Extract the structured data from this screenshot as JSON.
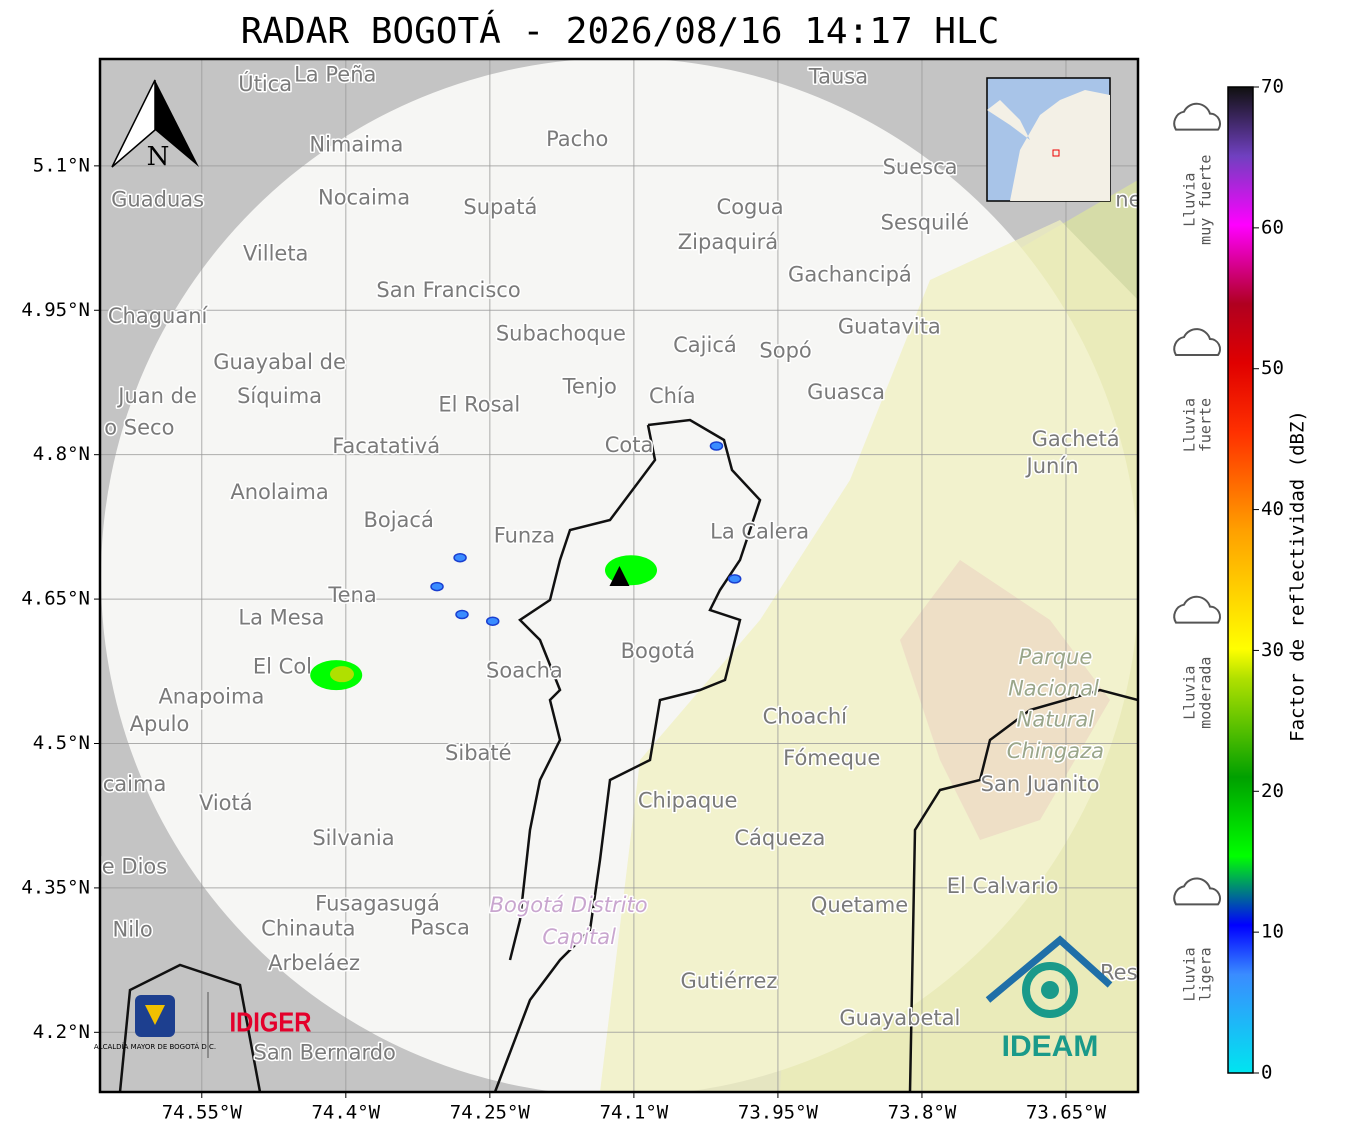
{
  "map": {
    "title": "RADAR BOGOTÁ - 2026/08/16 14:17 HLC",
    "lonlim": [
      -74.656,
      -73.575
    ],
    "latlim": [
      4.138,
      5.211
    ],
    "lon_ticks": [
      {
        "value": -74.55,
        "label": "74.55°W"
      },
      {
        "value": -74.4,
        "label": "74.4°W"
      },
      {
        "value": -74.25,
        "label": "74.25°W"
      },
      {
        "value": -74.1,
        "label": "74.1°W"
      },
      {
        "value": -73.95,
        "label": "73.95°W"
      },
      {
        "value": -73.8,
        "label": "73.8°W"
      },
      {
        "value": -73.65,
        "label": "73.65°W"
      }
    ],
    "lat_ticks": [
      {
        "value": 5.1,
        "label": "5.1°N"
      },
      {
        "value": 4.95,
        "label": "4.95°N"
      },
      {
        "value": 4.8,
        "label": "4.8°N"
      },
      {
        "value": 4.65,
        "label": "4.65°N"
      },
      {
        "value": 4.5,
        "label": "4.5°N"
      },
      {
        "value": 4.35,
        "label": "4.35°N"
      },
      {
        "value": 4.2,
        "label": "4.2°N"
      }
    ],
    "north_label": "N",
    "radar_site": {
      "lon": -74.115,
      "lat": 4.673
    },
    "echoes": [
      {
        "lon": -74.41,
        "lat": 4.571,
        "dbz": 20
      },
      {
        "lon": -74.404,
        "lat": 4.572,
        "dbz": 28
      },
      {
        "lon": -74.279,
        "lat": 4.634,
        "dbz": 10
      },
      {
        "lon": -74.281,
        "lat": 4.693,
        "dbz": 10
      },
      {
        "lon": -74.305,
        "lat": 4.663,
        "dbz": 10
      },
      {
        "lon": -74.247,
        "lat": 4.627,
        "dbz": 10
      },
      {
        "lon": -74.014,
        "lat": 4.809,
        "dbz": 10
      },
      {
        "lon": -73.995,
        "lat": 4.671,
        "dbz": 10
      },
      {
        "lon": -74.103,
        "lat": 4.68,
        "dbz": 18
      }
    ],
    "places": [
      {
        "name": "Útica",
        "lon": -74.484,
        "lat": 5.184
      },
      {
        "name": "La Peña",
        "lon": -74.411,
        "lat": 5.194
      },
      {
        "name": "Tausa",
        "lon": -73.887,
        "lat": 5.192
      },
      {
        "name": "Pacho",
        "lon": -74.159,
        "lat": 5.127
      },
      {
        "name": "Nimaima",
        "lon": -74.389,
        "lat": 5.121
      },
      {
        "name": "Guaduas",
        "lon": -74.596,
        "lat": 5.064
      },
      {
        "name": "Nocaima",
        "lon": -74.381,
        "lat": 5.066
      },
      {
        "name": "Supatá",
        "lon": -74.239,
        "lat": 5.056
      },
      {
        "name": "Cogua",
        "lon": -73.979,
        "lat": 5.056
      },
      {
        "name": "Suesca",
        "lon": -73.802,
        "lat": 5.098
      },
      {
        "name": "Sesquilé",
        "lon": -73.797,
        "lat": 5.04
      },
      {
        "name": "Zipaquirá",
        "lon": -74.002,
        "lat": 5.02
      },
      {
        "name": "Villeta",
        "lon": -74.473,
        "lat": 5.008
      },
      {
        "name": "Gachancipá",
        "lon": -73.875,
        "lat": 4.986
      },
      {
        "name": "San Francisco",
        "lon": -74.293,
        "lat": 4.97
      },
      {
        "name": "Chaguaní",
        "lon": -74.596,
        "lat": 4.943
      },
      {
        "name": "Guatavita",
        "lon": -73.834,
        "lat": 4.932
      },
      {
        "name": "Subachoque",
        "lon": -74.176,
        "lat": 4.925
      },
      {
        "name": "Cajicá",
        "lon": -74.026,
        "lat": 4.913
      },
      {
        "name": "Sopó",
        "lon": -73.942,
        "lat": 4.907
      },
      {
        "name": "Guayabal de",
        "lon": -74.469,
        "lat": 4.895
      },
      {
        "name": "Síquima",
        "lon": -74.469,
        "lat": 4.86
      },
      {
        "name": "Juan de",
        "lon": -74.596,
        "lat": 4.86
      },
      {
        "name": "o Seco",
        "lon": -74.615,
        "lat": 4.827
      },
      {
        "name": "Tenjo",
        "lon": -74.146,
        "lat": 4.87
      },
      {
        "name": "Guasca",
        "lon": -73.879,
        "lat": 4.864
      },
      {
        "name": "El Rosal",
        "lon": -74.261,
        "lat": 4.851
      },
      {
        "name": "Chía",
        "lon": -74.06,
        "lat": 4.86
      },
      {
        "name": "Facatativá",
        "lon": -74.358,
        "lat": 4.808
      },
      {
        "name": "Cota",
        "lon": -74.105,
        "lat": 4.809
      },
      {
        "name": "Gachetá",
        "lon": -73.64,
        "lat": 4.815
      },
      {
        "name": "Junín",
        "lon": -73.664,
        "lat": 4.787
      },
      {
        "name": "Anolaima",
        "lon": -74.469,
        "lat": 4.76
      },
      {
        "name": "Bojacá",
        "lon": -74.345,
        "lat": 4.731
      },
      {
        "name": "Funza",
        "lon": -74.214,
        "lat": 4.715
      },
      {
        "name": "La Calera",
        "lon": -73.969,
        "lat": 4.719
      },
      {
        "name": "Tena",
        "lon": -74.393,
        "lat": 4.653
      },
      {
        "name": "La Mesa",
        "lon": -74.467,
        "lat": 4.63
      },
      {
        "name": "El Col",
        "lon": -74.466,
        "lat": 4.579
      },
      {
        "name": "Anapoima",
        "lon": -74.54,
        "lat": 4.548
      },
      {
        "name": "Apulo",
        "lon": -74.594,
        "lat": 4.519
      },
      {
        "name": "Soacha",
        "lon": -74.214,
        "lat": 4.575
      },
      {
        "name": "Bogotá",
        "lon": -74.075,
        "lat": 4.595
      },
      {
        "name": "Choachí",
        "lon": -73.922,
        "lat": 4.527
      },
      {
        "name": "Fómeque",
        "lon": -73.894,
        "lat": 4.484
      },
      {
        "name": "Sibaté",
        "lon": -74.262,
        "lat": 4.489
      },
      {
        "name": "San Juanito",
        "lon": -73.677,
        "lat": 4.457
      },
      {
        "name": "caima",
        "lon": -74.62,
        "lat": 4.457
      },
      {
        "name": "Viotá",
        "lon": -74.525,
        "lat": 4.437
      },
      {
        "name": "Chipaque",
        "lon": -74.044,
        "lat": 4.44
      },
      {
        "name": "Cáqueza",
        "lon": -73.948,
        "lat": 4.401
      },
      {
        "name": "Silvania",
        "lon": -74.392,
        "lat": 4.401
      },
      {
        "name": "de Dios",
        "lon": -74.627,
        "lat": 4.371
      },
      {
        "name": "El Calvario",
        "lon": -73.716,
        "lat": 4.351
      },
      {
        "name": "Fusagasugá",
        "lon": -74.367,
        "lat": 4.333
      },
      {
        "name": "Quetame",
        "lon": -73.865,
        "lat": 4.331
      },
      {
        "name": "Nilo",
        "lon": -74.622,
        "lat": 4.306
      },
      {
        "name": "Chinauta",
        "lon": -74.439,
        "lat": 4.307
      },
      {
        "name": "Pasca",
        "lon": -74.302,
        "lat": 4.308
      },
      {
        "name": "Arbeláez",
        "lon": -74.433,
        "lat": 4.271
      },
      {
        "name": "Gutiérrez",
        "lon": -74.001,
        "lat": 4.252
      },
      {
        "name": "Guayabetal",
        "lon": -73.823,
        "lat": 4.214
      },
      {
        "name": "San Bernardo",
        "lon": -74.422,
        "lat": 4.178
      },
      {
        "name": "Res",
        "lon": -73.595,
        "lat": 4.261
      },
      {
        "name": "ne",
        "lon": -73.585,
        "lat": 5.064
      }
    ],
    "special_places": [
      {
        "name": "Bogotá Distrito",
        "lon": -74.168,
        "lat": 4.331,
        "style": "purple"
      },
      {
        "name": "Capital",
        "lon": -74.157,
        "lat": 4.298,
        "style": "purple"
      },
      {
        "name": "Parque",
        "lon": -73.661,
        "lat": 4.589,
        "style": "green"
      },
      {
        "name": "Nacional",
        "lon": -73.663,
        "lat": 4.556,
        "style": "green"
      },
      {
        "name": "Natural",
        "lon": -73.661,
        "lat": 4.524,
        "style": "green"
      },
      {
        "name": "Chingaza",
        "lon": -73.661,
        "lat": 4.491,
        "style": "green"
      }
    ],
    "logos": {
      "alcaldia": "ALCALDÍA MAYOR DE BOGOTÁ D.C.",
      "idiger": "IDIGER",
      "ideam": "IDEAM"
    }
  },
  "colorbar": {
    "label": "Factor de reflectividad (dBZ)",
    "lim": [
      0,
      70
    ],
    "ticks": [
      0,
      10,
      20,
      30,
      40,
      50,
      60,
      70
    ]
  },
  "rain_classes": [
    {
      "line1": "Lluvia",
      "line2": "muy fuerte",
      "dbz": 62
    },
    {
      "line1": "Lluvia",
      "line2": "fuerte",
      "dbz": 46
    },
    {
      "line1": "Lluvia",
      "line2": "moderada",
      "dbz": 27
    },
    {
      "line1": "Lluvia",
      "line2": "ligera",
      "dbz": 7
    }
  ]
}
